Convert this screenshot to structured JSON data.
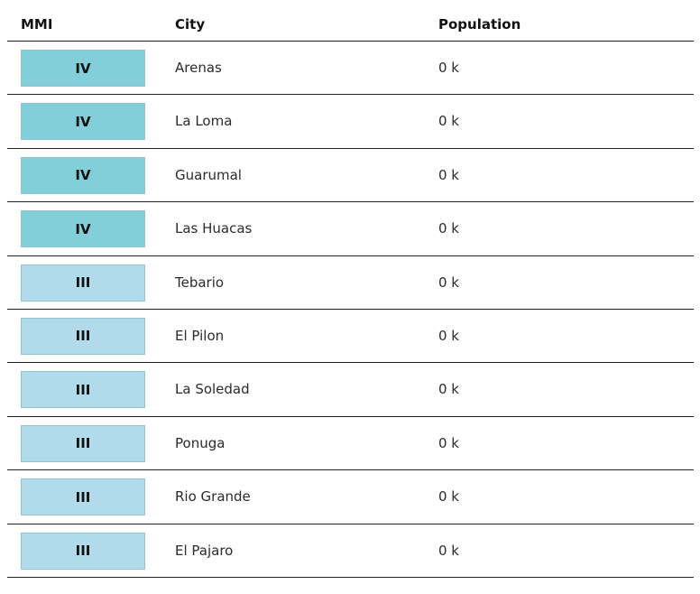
{
  "table": {
    "headers": {
      "mmi": "MMI",
      "city": "City",
      "population": "Population"
    },
    "rows": [
      {
        "mmi": "IV",
        "city": "Arenas",
        "population": "0 k",
        "mmi_color": "#82cfd9"
      },
      {
        "mmi": "IV",
        "city": "La Loma",
        "population": "0 k",
        "mmi_color": "#82cfd9"
      },
      {
        "mmi": "IV",
        "city": "Guarumal",
        "population": "0 k",
        "mmi_color": "#82cfd9"
      },
      {
        "mmi": "IV",
        "city": "Las Huacas",
        "population": "0 k",
        "mmi_color": "#82cfd9"
      },
      {
        "mmi": "III",
        "city": "Tebario",
        "population": "0 k",
        "mmi_color": "#b1daeb"
      },
      {
        "mmi": "III",
        "city": "El Pilon",
        "population": "0 k",
        "mmi_color": "#b1daeb"
      },
      {
        "mmi": "III",
        "city": "La Soledad",
        "population": "0 k",
        "mmi_color": "#b1daeb"
      },
      {
        "mmi": "III",
        "city": "Ponuga",
        "population": "0 k",
        "mmi_color": "#b1daeb"
      },
      {
        "mmi": "III",
        "city": "Rio Grande",
        "population": "0 k",
        "mmi_color": "#b1daeb"
      },
      {
        "mmi": "III",
        "city": "El Pajaro",
        "population": "0 k",
        "mmi_color": "#b1daeb"
      }
    ]
  }
}
